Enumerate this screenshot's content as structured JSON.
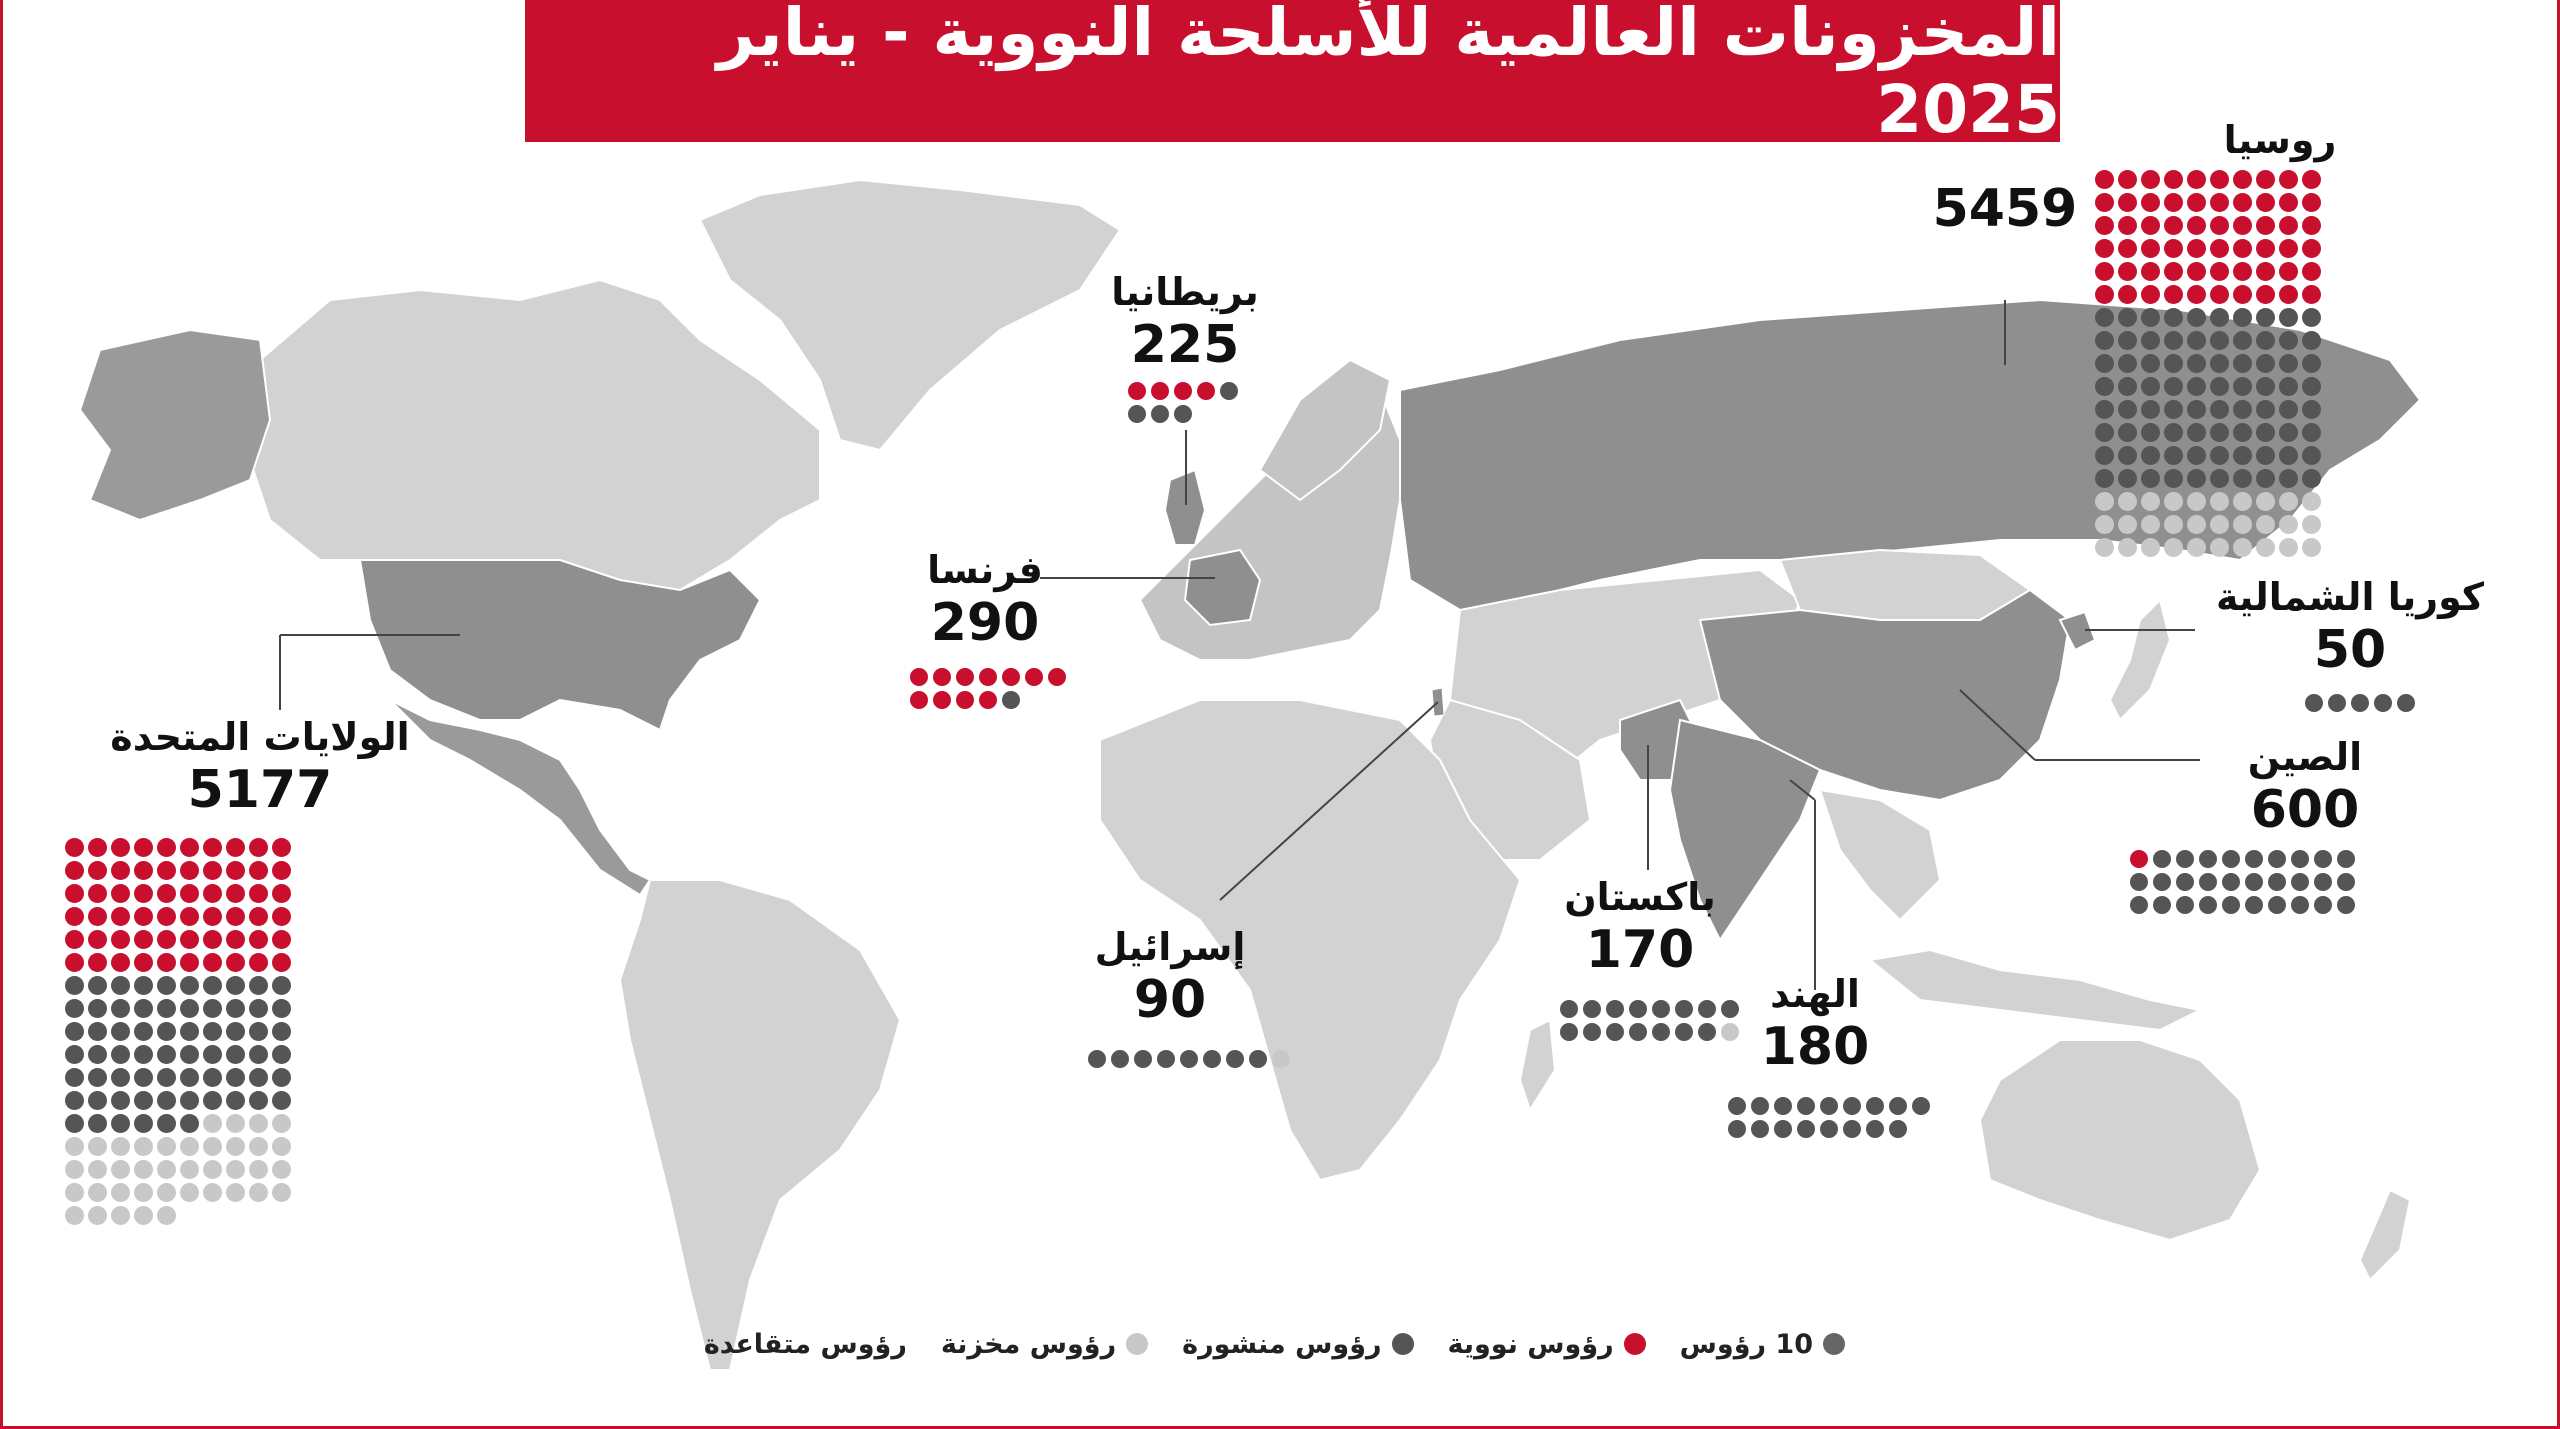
{
  "title": "المخزونات العالمية للأسلحة النووية - يناير 2025",
  "colors": {
    "accent": "#c8102e",
    "deployed": "#555555",
    "stored": "#c8c8c8",
    "land": "#d2d2d2",
    "highlight_land": "#8f8f8f",
    "dot_unit": "#666666"
  },
  "countries": [
    {
      "name": "روسيا",
      "count": "5459",
      "red": 60,
      "dark": 80,
      "light": 30
    },
    {
      "name": "بريطانيا",
      "count": "225",
      "red": 4,
      "dark": 4,
      "light": 0
    },
    {
      "name": "فرنسا",
      "count": "290",
      "red": 11,
      "dark": 1,
      "light": 0
    },
    {
      "name": "الولايات المتحدة",
      "count": "5177",
      "red": 60,
      "dark": 66,
      "light": 39
    },
    {
      "name": "كوريا الشمالية",
      "count": "50",
      "red": 0,
      "dark": 5,
      "light": 0
    },
    {
      "name": "الصين",
      "count": "600",
      "red": 1,
      "dark": 29,
      "light": 0
    },
    {
      "name": "إسرائيل",
      "count": "90",
      "red": 0,
      "dark": 8,
      "light": 1
    },
    {
      "name": "باكستان",
      "count": "170",
      "red": 0,
      "dark": 15,
      "light": 1
    },
    {
      "name": "الهند",
      "count": "180",
      "red": 0,
      "dark": 17,
      "light": 0
    }
  ],
  "legend": [
    {
      "label": "10 رؤوس",
      "color": "#666666"
    },
    {
      "label": "رؤوس نووية",
      "color": "#c8102e"
    },
    {
      "label": "رؤوس منشورة",
      "color": "#555555"
    },
    {
      "label": "رؤوس مخزنة",
      "color": "#c8c8c8"
    },
    {
      "label": "رؤوس متقاعدة",
      "color": "#c8c8c8"
    }
  ]
}
